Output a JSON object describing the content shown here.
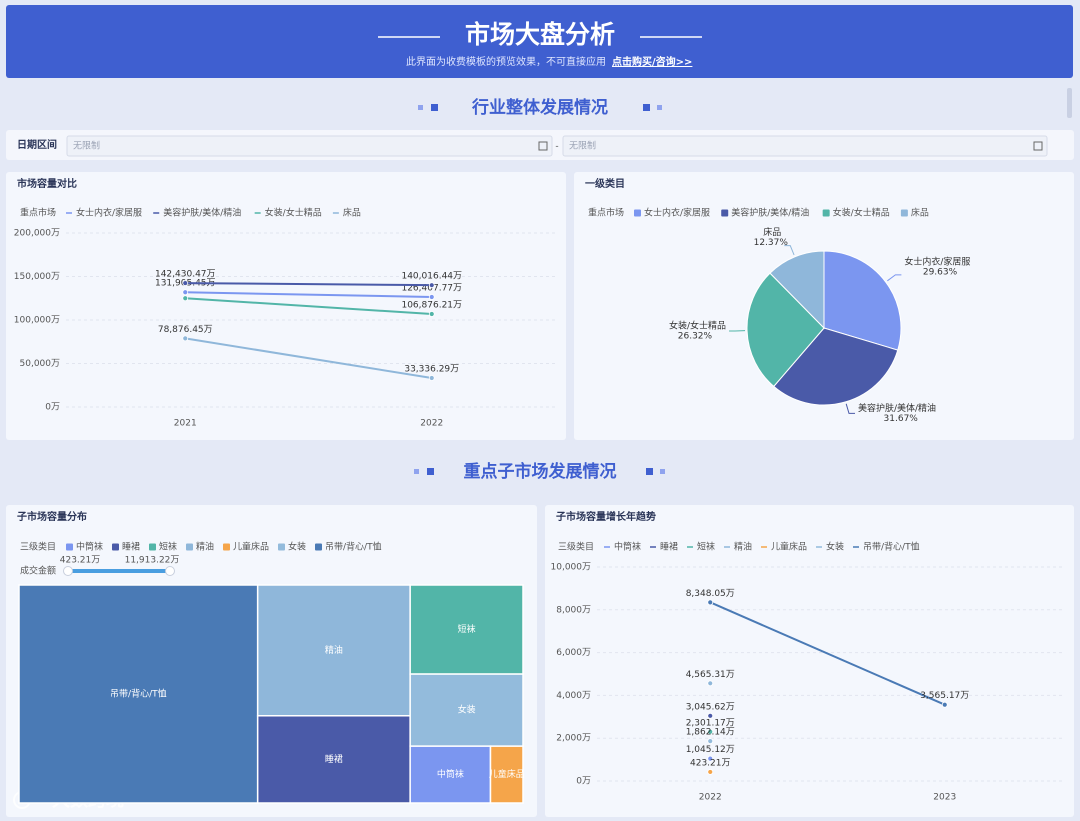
{
  "header": {
    "title": "市场大盘分析",
    "subtitle": "此界面为收费模板的预览效果，不可直接应用",
    "link": "点击购买/咨询>>"
  },
  "sections": [
    "行业整体发展情况",
    "重点子市场发展情况"
  ],
  "filter": {
    "label": "日期区间",
    "start_placeholder": "无限制",
    "separator": "-",
    "end_placeholder": "无限制"
  },
  "watermark": "大数跨境",
  "chart_data": [
    {
      "type": "line",
      "title": "市场容量对比",
      "legend_title": "重点市场",
      "categories": [
        "2021",
        "2022"
      ],
      "series": [
        {
          "name": "女士内衣/家居服",
          "color": "#7b96f0",
          "values": [
            131905.45,
            126407.77
          ],
          "value_labels": [
            "131,905.45万",
            "126,407.77万"
          ]
        },
        {
          "name": "美容护肤/美体/精油",
          "color": "#4a5aa8",
          "values": [
            142430.47,
            140016.44
          ],
          "value_labels": [
            "142,430.47万",
            "140,016.44万"
          ]
        },
        {
          "name": "女装/女士精品",
          "color": "#52b5a8",
          "values": [
            125000,
            106876.21
          ],
          "value_labels": [
            null,
            "106,876.21万"
          ]
        },
        {
          "name": "床品",
          "color": "#8fb7da",
          "values": [
            78876.45,
            33336.29
          ],
          "value_labels": [
            "78,876.45万",
            "33,336.29万"
          ]
        }
      ],
      "ylim": [
        0,
        200000
      ],
      "yticks": [
        {
          "value": 0,
          "label": "0万"
        },
        {
          "value": 50000,
          "label": "50,000万"
        },
        {
          "value": 100000,
          "label": "100,000万"
        },
        {
          "value": 150000,
          "label": "150,000万"
        },
        {
          "value": 200000,
          "label": "200,000万"
        }
      ],
      "grid": true
    },
    {
      "type": "pie",
      "title": "一级类目",
      "legend_title": "重点市场",
      "categories": [
        "女士内衣/家居服",
        "美容护肤/美体/精油",
        "女装/女士精品",
        "床品"
      ],
      "values": [
        29.63,
        31.67,
        26.32,
        12.37
      ],
      "value_labels": [
        "29.63%",
        "31.67%",
        "26.32%",
        "12.37%"
      ],
      "colors": [
        "#7b96f0",
        "#4a5aa8",
        "#52b5a8",
        "#8fb7da"
      ]
    },
    {
      "type": "treemap",
      "title": "子市场容量分布",
      "legend_title": "三级类目",
      "categories": [
        "中筒袜",
        "睡裙",
        "短袜",
        "精油",
        "儿童床品",
        "女装",
        "吊带/背心/T恤"
      ],
      "values": [
        1045.12,
        3045.62,
        2301.17,
        4565.31,
        423.21,
        1862.14,
        11913.22
      ],
      "colors": [
        "#7b96f0",
        "#4a5aa8",
        "#52b5a8",
        "#8fb7da",
        "#f5a54a",
        "#93bbdc",
        "#4a7ab5"
      ],
      "range": {
        "label": "成交金额",
        "values": [
          423.21,
          11913.22
        ],
        "value_labels": [
          "423.21万",
          "11,913.22万"
        ]
      }
    },
    {
      "type": "line",
      "title": "子市场容量增长年趋势",
      "legend_title": "三级类目",
      "categories": [
        "2022",
        "2023"
      ],
      "series": [
        {
          "name": "中筒袜",
          "color": "#7b96f0",
          "values": [
            1045.12,
            null
          ],
          "value_labels": [
            "1,045.12万",
            null
          ]
        },
        {
          "name": "睡裙",
          "color": "#4a5aa8",
          "values": [
            3045.62,
            null
          ],
          "value_labels": [
            "3,045.62万",
            null
          ]
        },
        {
          "name": "短袜",
          "color": "#52b5a8",
          "values": [
            2301.17,
            null
          ],
          "value_labels": [
            "2,301.17万",
            null
          ]
        },
        {
          "name": "精油",
          "color": "#8fb7da",
          "values": [
            4565.31,
            null
          ],
          "value_labels": [
            "4,565.31万",
            null
          ]
        },
        {
          "name": "儿童床品",
          "color": "#f5a54a",
          "values": [
            423.21,
            null
          ],
          "value_labels": [
            "423.21万",
            null
          ]
        },
        {
          "name": "女装",
          "color": "#93bbdc",
          "values": [
            1862.14,
            null
          ],
          "value_labels": [
            "1,862.14万",
            null
          ]
        },
        {
          "name": "吊带/背心/T恤",
          "color": "#4a7ab5",
          "values": [
            8348.05,
            3565.17
          ],
          "value_labels": [
            "8,348.05万",
            "3,565.17万"
          ]
        }
      ],
      "ylim": [
        0,
        10000
      ],
      "yticks": [
        {
          "value": 0,
          "label": "0万"
        },
        {
          "value": 2000,
          "label": "2,000万"
        },
        {
          "value": 4000,
          "label": "4,000万"
        },
        {
          "value": 6000,
          "label": "6,000万"
        },
        {
          "value": 8000,
          "label": "8,000万"
        },
        {
          "value": 10000,
          "label": "10,000万"
        }
      ],
      "grid": true
    }
  ]
}
